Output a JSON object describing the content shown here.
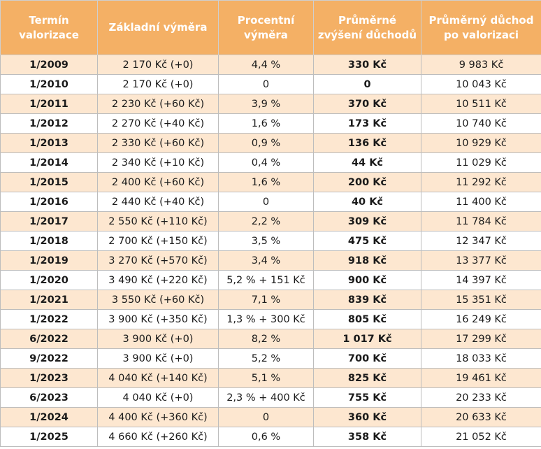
{
  "colors": {
    "header_bg": "#f4b065",
    "header_text": "#ffffff",
    "row_odd": "#fde7d0",
    "row_even": "#ffffff"
  },
  "header": {
    "term": [
      "Termín",
      "valorizace"
    ],
    "base": [
      "Základní výměra"
    ],
    "percent": [
      "Procentní",
      "výměra"
    ],
    "increase": [
      "Průměrné",
      "zvýšení důchodů"
    ],
    "average": [
      "Průměrný důchod",
      "po valorizaci"
    ]
  },
  "rows": [
    {
      "term": "1/2009",
      "base": "2 170 Kč (+0)",
      "percent": "4,4 %",
      "increase": "330 Kč",
      "average": "9 983 Kč"
    },
    {
      "term": "1/2010",
      "base": "2 170 Kč (+0)",
      "percent": "0",
      "increase": "0",
      "average": "10 043 Kč"
    },
    {
      "term": "1/2011",
      "base": "2 230 Kč (+60 Kč)",
      "percent": "3,9 %",
      "increase": "370 Kč",
      "average": "10 511 Kč"
    },
    {
      "term": "1/2012",
      "base": "2 270 Kč (+40 Kč)",
      "percent": "1,6 %",
      "increase": "173 Kč",
      "average": "10 740 Kč"
    },
    {
      "term": "1/2013",
      "base": "2 330 Kč (+60 Kč)",
      "percent": "0,9 %",
      "increase": "136 Kč",
      "average": "10 929 Kč"
    },
    {
      "term": "1/2014",
      "base": "2 340 Kč (+10 Kč)",
      "percent": "0,4 %",
      "increase": "44 Kč",
      "average": "11 029 Kč"
    },
    {
      "term": "1/2015",
      "base": "2 400 Kč (+60 Kč)",
      "percent": "1,6 %",
      "increase": "200 Kč",
      "average": "11 292 Kč"
    },
    {
      "term": "1/2016",
      "base": "2 440 Kč (+40 Kč)",
      "percent": "0",
      "increase": "40 Kč",
      "average": "11 400 Kč"
    },
    {
      "term": "1/2017",
      "base": "2 550 Kč (+110 Kč)",
      "percent": "2,2 %",
      "increase": "309 Kč",
      "average": "11 784 Kč"
    },
    {
      "term": "1/2018",
      "base": "2 700 Kč (+150 Kč)",
      "percent": "3,5 %",
      "increase": "475 Kč",
      "average": "12 347 Kč"
    },
    {
      "term": "1/2019",
      "base": "3 270 Kč (+570 Kč)",
      "percent": "3,4 %",
      "increase": "918 Kč",
      "average": "13 377 Kč"
    },
    {
      "term": "1/2020",
      "base": "3 490 Kč (+220 Kč)",
      "percent": "5,2 % + 151 Kč",
      "increase": "900 Kč",
      "average": "14 397 Kč"
    },
    {
      "term": "1/2021",
      "base": "3 550 Kč (+60 Kč)",
      "percent": "7,1 %",
      "increase": "839 Kč",
      "average": "15 351 Kč"
    },
    {
      "term": "1/2022",
      "base": "3 900 Kč (+350 Kč)",
      "percent": "1,3 % + 300 Kč",
      "increase": "805 Kč",
      "average": "16 249 Kč"
    },
    {
      "term": "6/2022",
      "base": "3 900 Kč (+0)",
      "percent": "8,2 %",
      "increase": "1 017 Kč",
      "average": "17 299 Kč"
    },
    {
      "term": "9/2022",
      "base": "3 900 Kč (+0)",
      "percent": "5,2 %",
      "increase": "700 Kč",
      "average": "18 033 Kč"
    },
    {
      "term": "1/2023",
      "base": "4 040 Kč (+140 Kč)",
      "percent": "5,1 %",
      "increase": "825 Kč",
      "average": "19 461 Kč"
    },
    {
      "term": "6/2023",
      "base": "4 040 Kč (+0)",
      "percent": "2,3 % + 400 Kč",
      "increase": "755 Kč",
      "average": "20 233 Kč"
    },
    {
      "term": "1/2024",
      "base": "4 400 Kč (+360 Kč)",
      "percent": "0",
      "increase": "360 Kč",
      "average": "20 633 Kč"
    },
    {
      "term": "1/2025",
      "base": "4 660 Kč (+260 Kč)",
      "percent": "0,6 %",
      "increase": "358 Kč",
      "average": "21 052 Kč"
    }
  ]
}
